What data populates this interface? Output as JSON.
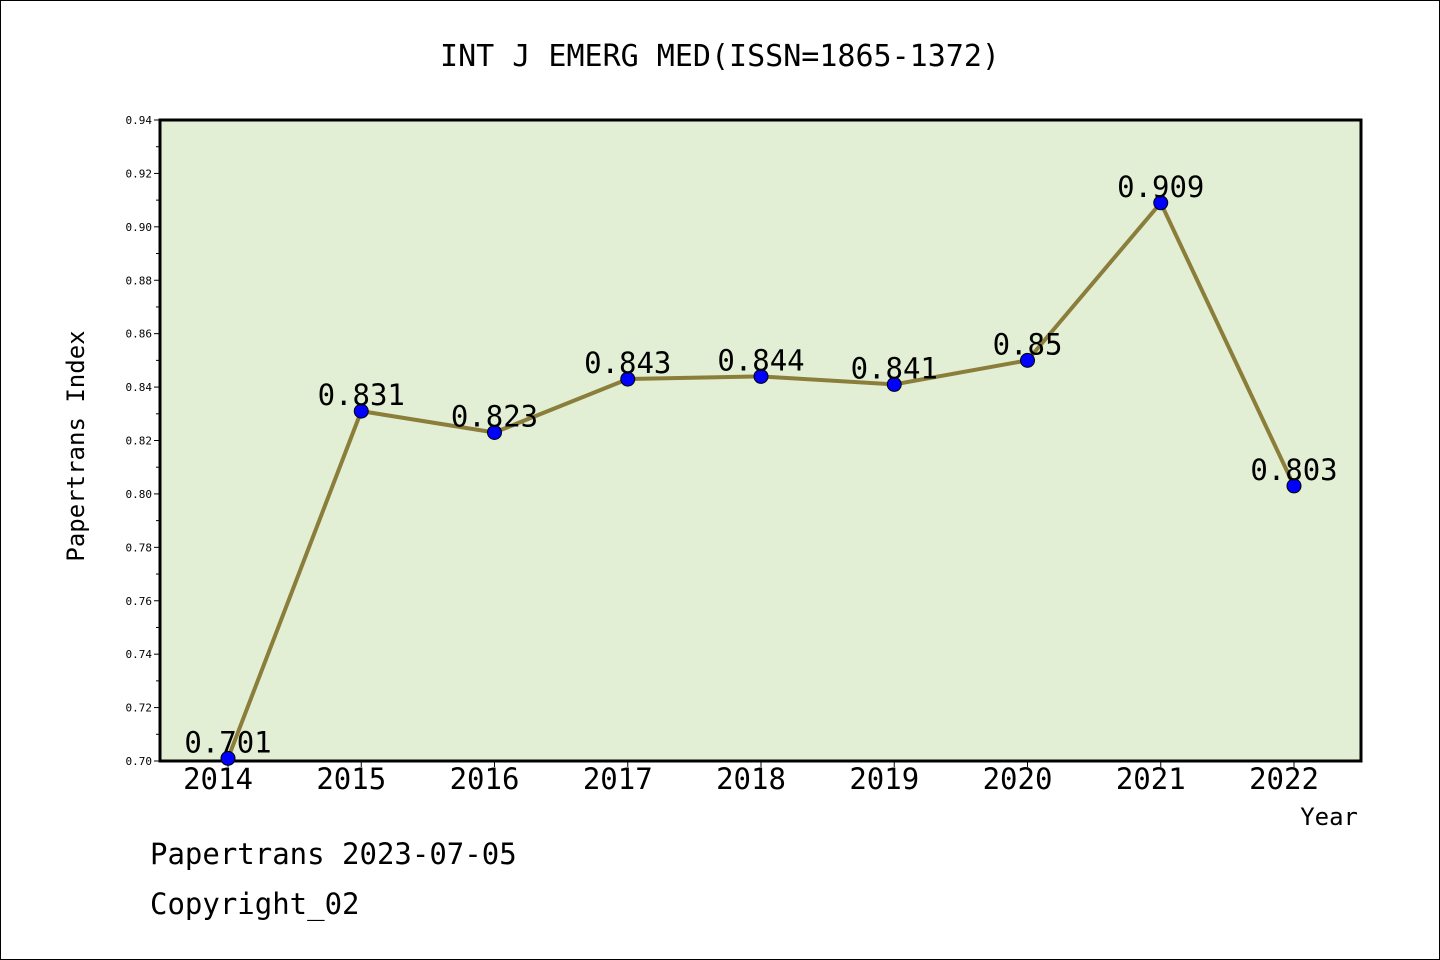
{
  "chart_data": {
    "type": "line",
    "title": "INT J EMERG MED(ISSN=1865-1372)",
    "xlabel": "Year",
    "ylabel": "Papertrans Index",
    "x": [
      "2014",
      "2015",
      "2016",
      "2017",
      "2018",
      "2019",
      "2020",
      "2021",
      "2022"
    ],
    "values": [
      0.701,
      0.831,
      0.823,
      0.843,
      0.844,
      0.841,
      0.85,
      0.909,
      0.803
    ],
    "data_labels": [
      "0.701",
      "0.831",
      "0.823",
      "0.843",
      "0.844",
      "0.841",
      "0.85",
      "0.909",
      "0.803"
    ],
    "ylim": [
      0.7,
      0.94
    ],
    "yticks": [
      "0.70",
      "0.72",
      "0.74",
      "0.76",
      "0.78",
      "0.80",
      "0.82",
      "0.84",
      "0.86",
      "0.88",
      "0.90",
      "0.92",
      "0.94"
    ],
    "grid": false,
    "colors": {
      "plot_background": "#e2efd4",
      "line": "#8b7d3a",
      "marker": "#0000ff"
    }
  },
  "footer": {
    "line1": "Papertrans 2023-07-05",
    "line2": "Copyright_02"
  }
}
